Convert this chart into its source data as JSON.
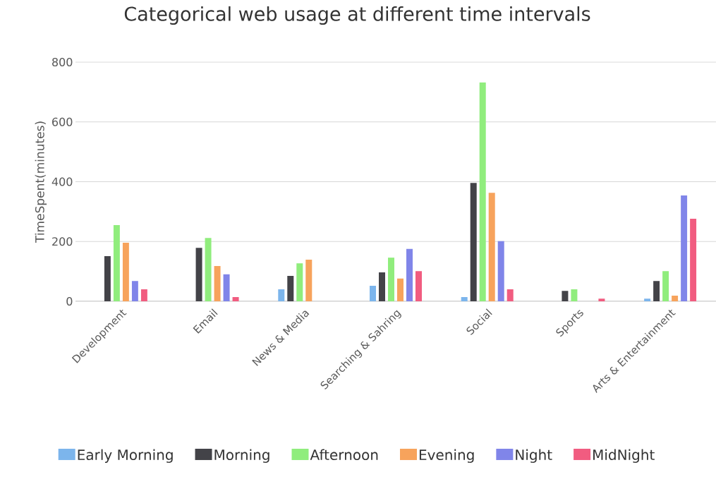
{
  "chart_data": {
    "type": "bar",
    "title": "Categorical web usage at different time intervals",
    "ylabel": "TimeSpent(minutes)",
    "categories": [
      "Development",
      "Email",
      "News & Media",
      "Searching & Sahring",
      "Social",
      "Sports",
      "Arts & Entertainment"
    ],
    "series": [
      {
        "name": "Early Morning",
        "color": "#7cb5ec",
        "values": [
          0,
          0,
          40,
          52,
          14,
          0,
          9
        ]
      },
      {
        "name": "Morning",
        "color": "#434348",
        "values": [
          151,
          179,
          85,
          97,
          396,
          35,
          68
        ]
      },
      {
        "name": "Afternoon",
        "color": "#90ed7d",
        "values": [
          255,
          212,
          127,
          146,
          732,
          40,
          101
        ]
      },
      {
        "name": "Evening",
        "color": "#f7a35c",
        "values": [
          196,
          118,
          139,
          76,
          363,
          0,
          19
        ]
      },
      {
        "name": "Night",
        "color": "#8085e9",
        "values": [
          68,
          90,
          0,
          175,
          201,
          0,
          354
        ]
      },
      {
        "name": "MidNight",
        "color": "#f15c80",
        "values": [
          40,
          14,
          0,
          101,
          40,
          9,
          276
        ]
      }
    ],
    "ylim": [
      0,
      800
    ],
    "yticks": [
      0,
      200,
      400,
      600,
      800
    ],
    "grid": "y",
    "legend": "bottom"
  }
}
